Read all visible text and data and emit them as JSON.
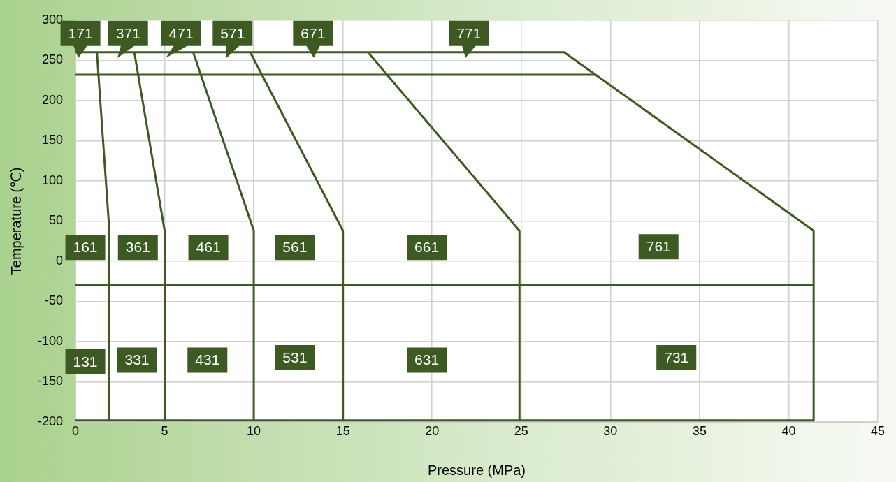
{
  "chart_data": {
    "type": "line",
    "xlabel": "Pressure (MPa)",
    "ylabel": "Temperature (℃)",
    "xlim": [
      0,
      45
    ],
    "xticks": [
      0,
      5,
      10,
      15,
      20,
      25,
      30,
      35,
      40,
      45
    ],
    "ylim": [
      -200,
      300
    ],
    "yticks": [
      -200,
      -150,
      -100,
      -50,
      0,
      50,
      100,
      150,
      200,
      250,
      300
    ],
    "grid": true,
    "marker": "none",
    "line_style": "solid",
    "series": [
      {
        "color": "#3d5a23",
        "x": [
          1.2,
          1.9,
          1.9
        ],
        "values": [
          260,
          38,
          -198
        ]
      },
      {
        "color": "#3d5a23",
        "x": [
          3.3,
          5,
          5
        ],
        "values": [
          260,
          38,
          -198
        ]
      },
      {
        "color": "#3d5a23",
        "x": [
          6.6,
          10,
          10
        ],
        "values": [
          260,
          38,
          -198
        ]
      },
      {
        "color": "#3d5a23",
        "x": [
          9.8,
          15,
          15
        ],
        "values": [
          260,
          38,
          -198
        ]
      },
      {
        "color": "#3d5a23",
        "x": [
          16.4,
          24.9,
          24.9
        ],
        "values": [
          260,
          38,
          -198
        ]
      },
      {
        "color": "#3d5a23",
        "x": [
          0,
          27.4,
          41.4,
          41.4
        ],
        "values": [
          260,
          260,
          38,
          -198
        ]
      },
      {
        "color": "#3d5a23",
        "x": [
          0,
          29.2
        ],
        "values": [
          232,
          232
        ]
      },
      {
        "color": "#3d5a23",
        "x": [
          0,
          41.4
        ],
        "values": [
          -30,
          -30
        ]
      },
      {
        "color": "#3d5a23",
        "x": [
          0,
          41.4
        ],
        "values": [
          -198,
          -198
        ]
      }
    ],
    "annotations": [
      {
        "text": "171",
        "x": 0.2,
        "y": 260
      },
      {
        "text": "371",
        "x": 2.4,
        "y": 260
      },
      {
        "text": "471",
        "x": 5.1,
        "y": 260
      },
      {
        "text": "571",
        "x": 8.5,
        "y": 260
      },
      {
        "text": "671",
        "x": 13.4,
        "y": 260
      },
      {
        "text": "771",
        "x": 21.9,
        "y": 260
      },
      "161",
      "361",
      "461",
      "561",
      "661",
      "761",
      "131",
      "331",
      "431",
      "531",
      "631",
      "731"
    ]
  }
}
